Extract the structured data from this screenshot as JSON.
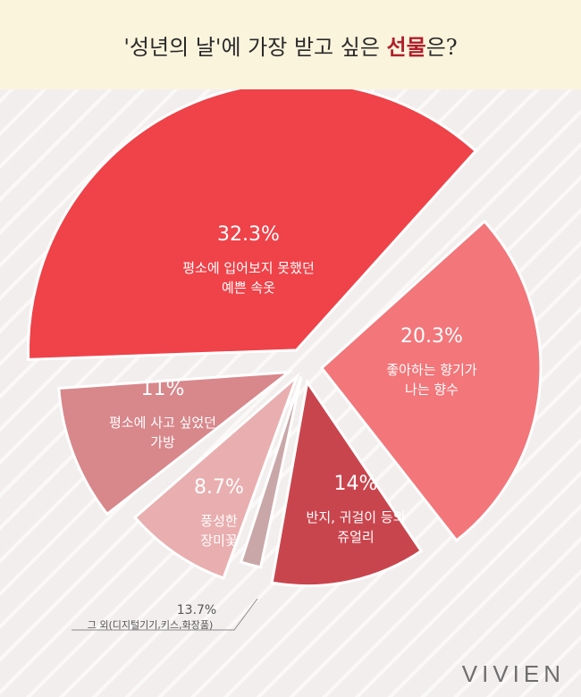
{
  "title": {
    "prefix": "'성년의 날'에 가장 받고 싶은 ",
    "highlight": "선물",
    "suffix": "은?"
  },
  "brand": "VIVIEN",
  "chart_data": {
    "type": "pie",
    "title": "'성년의 날'에 가장 받고 싶은 선물은?",
    "slices": [
      {
        "label": "평소에 입어보지 못했던 예쁜 속옷",
        "lines": [
          "평소에 입어보지 못했던",
          "예쁜 속옷"
        ],
        "value": 32.3,
        "display": "32.3%",
        "color": "#ef4249"
      },
      {
        "label": "좋아하는 향기가 나는 향수",
        "lines": [
          "좋아하는 향기가",
          "나는 향수"
        ],
        "value": 20.3,
        "display": "20.3%",
        "color": "#f2767a"
      },
      {
        "label": "반지, 귀걸이 등의 쥬얼리",
        "lines": [
          "반지, 귀걸이 등의",
          "쥬얼리"
        ],
        "value": 14,
        "display": "14%",
        "color": "#c9454d"
      },
      {
        "label": "그 외(디지털기기,키스,화장품)",
        "lines": [
          "그 외(디지털기기,키스,화장품)"
        ],
        "value": 13.7,
        "display": "13.7%",
        "color": "#c9a7a8"
      },
      {
        "label": "풍성한 장미꽃",
        "lines": [
          "풍성한",
          "장미꽃"
        ],
        "value": 8.7,
        "display": "8.7%",
        "color": "#e9aeaf"
      },
      {
        "label": "평소에 사고 싶었던 가방",
        "lines": [
          "평소에 사고 싶었던",
          "가방"
        ],
        "value": 11,
        "display": "11%",
        "color": "#d8878b"
      }
    ]
  }
}
